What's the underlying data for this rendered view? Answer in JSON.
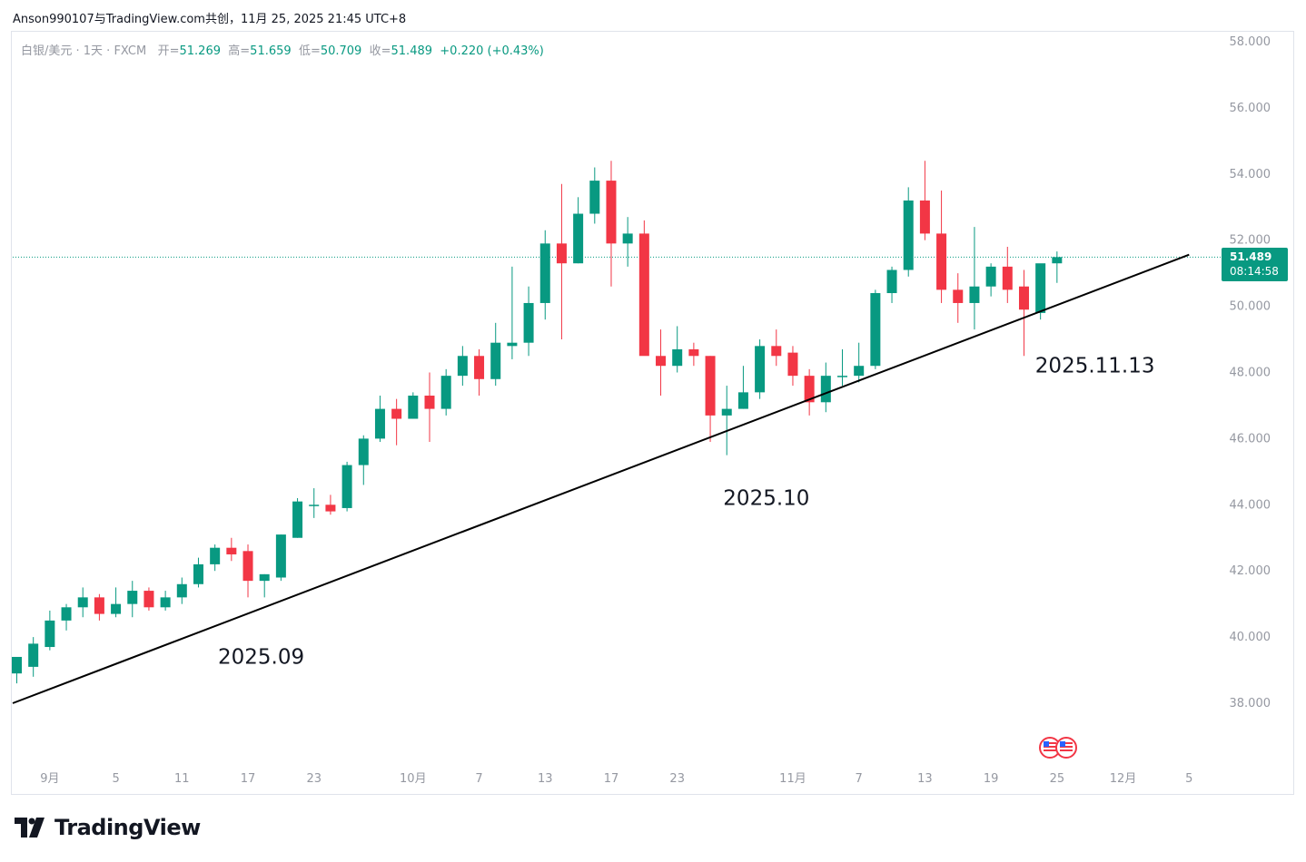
{
  "header": {
    "text": "Anson990107与TradingView.com共创，11月 25, 2025 21:45 UTC+8"
  },
  "legend": {
    "symbol": "白银/美元 · 1天 · FXCM",
    "open_label": "开=",
    "open": "51.269",
    "high_label": "高=",
    "high": "51.659",
    "low_label": "低=",
    "low": "50.709",
    "close_label": "收=",
    "close": "51.489",
    "change": "+0.220 (+0.43%)"
  },
  "price_tag": {
    "price": "51.489",
    "countdown": "08:14:58"
  },
  "footer": {
    "brand": "TradingView"
  },
  "colors": {
    "up": "#089981",
    "down": "#f23645",
    "axis_text": "#9598a1",
    "trendline": "#000000"
  },
  "chart_data": {
    "type": "candlestick",
    "title": "白银/美元 · 1天 · FXCM",
    "ylim": [
      36.0,
      58.6
    ],
    "y_ticks": [
      "58.000",
      "56.000",
      "54.000",
      "52.000",
      "50.000",
      "48.000",
      "46.000",
      "44.000",
      "42.000",
      "40.000",
      "38.000"
    ],
    "x_labels": [
      {
        "label": "9月",
        "bar": 2
      },
      {
        "label": "5",
        "bar": 6
      },
      {
        "label": "11",
        "bar": 10
      },
      {
        "label": "17",
        "bar": 14
      },
      {
        "label": "23",
        "bar": 18
      },
      {
        "label": "10月",
        "bar": 24
      },
      {
        "label": "7",
        "bar": 28
      },
      {
        "label": "13",
        "bar": 32
      },
      {
        "label": "17",
        "bar": 36
      },
      {
        "label": "23",
        "bar": 40
      },
      {
        "label": "11月",
        "bar": 47
      },
      {
        "label": "7",
        "bar": 51
      },
      {
        "label": "13",
        "bar": 55
      },
      {
        "label": "19",
        "bar": 59
      },
      {
        "label": "25",
        "bar": 63
      },
      {
        "label": "12月",
        "bar": 67
      },
      {
        "label": "5",
        "bar": 71
      }
    ],
    "candles": [
      [
        38.9,
        39.4,
        38.6,
        39.4
      ],
      [
        39.1,
        40.0,
        38.8,
        39.8
      ],
      [
        39.7,
        40.8,
        39.6,
        40.5
      ],
      [
        40.5,
        41.0,
        40.2,
        40.9
      ],
      [
        40.9,
        41.5,
        40.6,
        41.2
      ],
      [
        41.2,
        41.3,
        40.5,
        40.7
      ],
      [
        40.7,
        41.5,
        40.6,
        41.0
      ],
      [
        41.0,
        41.7,
        40.6,
        41.4
      ],
      [
        41.4,
        41.5,
        40.8,
        40.9
      ],
      [
        40.9,
        41.4,
        40.8,
        41.2
      ],
      [
        41.2,
        41.8,
        41.0,
        41.6
      ],
      [
        41.6,
        42.4,
        41.5,
        42.2
      ],
      [
        42.2,
        42.8,
        42.0,
        42.7
      ],
      [
        42.7,
        43.0,
        42.3,
        42.5
      ],
      [
        42.6,
        42.8,
        41.2,
        41.7
      ],
      [
        41.7,
        41.9,
        41.2,
        41.9
      ],
      [
        41.8,
        43.1,
        41.7,
        43.1
      ],
      [
        43.0,
        44.2,
        43.0,
        44.1
      ],
      [
        44.0,
        44.5,
        43.6,
        44.0
      ],
      [
        44.0,
        44.3,
        43.7,
        43.8
      ],
      [
        43.9,
        45.3,
        43.8,
        45.2
      ],
      [
        45.2,
        46.1,
        44.6,
        46.0
      ],
      [
        46.0,
        47.3,
        45.9,
        46.9
      ],
      [
        46.9,
        47.2,
        45.8,
        46.6
      ],
      [
        46.6,
        47.4,
        46.6,
        47.3
      ],
      [
        47.3,
        48.0,
        45.9,
        46.9
      ],
      [
        46.9,
        48.1,
        46.7,
        47.9
      ],
      [
        47.9,
        48.8,
        47.6,
        48.5
      ],
      [
        48.5,
        48.7,
        47.3,
        47.8
      ],
      [
        47.8,
        49.5,
        47.6,
        48.9
      ],
      [
        48.8,
        51.2,
        48.4,
        48.9
      ],
      [
        48.9,
        50.6,
        48.5,
        50.1
      ],
      [
        50.1,
        52.3,
        49.6,
        51.9
      ],
      [
        51.9,
        53.7,
        49.0,
        51.3
      ],
      [
        51.3,
        53.3,
        51.3,
        52.8
      ],
      [
        52.8,
        54.2,
        52.5,
        53.8
      ],
      [
        53.8,
        54.4,
        50.6,
        51.9
      ],
      [
        51.9,
        52.7,
        51.2,
        52.2
      ],
      [
        52.2,
        52.6,
        48.7,
        48.5
      ],
      [
        48.5,
        49.3,
        47.3,
        48.2
      ],
      [
        48.2,
        49.4,
        48.0,
        48.7
      ],
      [
        48.7,
        48.9,
        48.2,
        48.5
      ],
      [
        48.5,
        48.5,
        45.9,
        46.7
      ],
      [
        46.7,
        47.6,
        45.5,
        46.9
      ],
      [
        46.9,
        48.2,
        46.9,
        47.4
      ],
      [
        47.4,
        49.0,
        47.2,
        48.8
      ],
      [
        48.8,
        49.3,
        48.2,
        48.5
      ],
      [
        48.6,
        48.8,
        47.6,
        47.9
      ],
      [
        47.9,
        48.1,
        46.7,
        47.1
      ],
      [
        47.1,
        48.3,
        46.8,
        47.9
      ],
      [
        47.9,
        48.7,
        47.6,
        47.9
      ],
      [
        47.9,
        48.9,
        47.7,
        48.2
      ],
      [
        48.2,
        50.5,
        48.1,
        50.4
      ],
      [
        50.4,
        51.2,
        50.1,
        51.1
      ],
      [
        51.1,
        53.6,
        50.9,
        53.2
      ],
      [
        53.2,
        54.4,
        52.0,
        52.2
      ],
      [
        52.2,
        53.5,
        50.1,
        50.5
      ],
      [
        50.5,
        51.0,
        49.5,
        50.1
      ],
      [
        50.1,
        52.4,
        49.3,
        50.6
      ],
      [
        50.6,
        51.3,
        50.3,
        51.2
      ],
      [
        51.2,
        51.8,
        50.1,
        50.5
      ],
      [
        50.6,
        51.1,
        48.5,
        49.9
      ],
      [
        49.8,
        51.2,
        49.6,
        51.3
      ],
      [
        51.3,
        51.659,
        50.709,
        51.489
      ]
    ],
    "current_price": 51.489,
    "trendline": {
      "start": {
        "bar": 0,
        "price": 38.0
      },
      "end": {
        "bar": 71,
        "price": 51.56
      }
    },
    "annotations": [
      {
        "text": "2025.09",
        "bar": 14.8,
        "price": 39.2
      },
      {
        "text": "2025.10",
        "bar": 45.4,
        "price": 44.0
      },
      {
        "text": "2025.11.13",
        "bar": 65.3,
        "price": 48.0
      }
    ]
  }
}
